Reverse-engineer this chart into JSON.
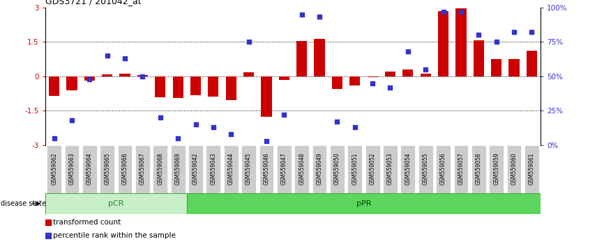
{
  "title": "GDS3721 / 201042_at",
  "samples": [
    "GSM559062",
    "GSM559063",
    "GSM559064",
    "GSM559065",
    "GSM559066",
    "GSM559067",
    "GSM559068",
    "GSM559069",
    "GSM559042",
    "GSM559043",
    "GSM559044",
    "GSM559045",
    "GSM559046",
    "GSM559047",
    "GSM559048",
    "GSM559049",
    "GSM559050",
    "GSM559051",
    "GSM559052",
    "GSM559053",
    "GSM559054",
    "GSM559055",
    "GSM559056",
    "GSM559057",
    "GSM559058",
    "GSM559059",
    "GSM559060",
    "GSM559061"
  ],
  "bar_values": [
    -0.85,
    -0.6,
    -0.18,
    0.08,
    0.12,
    0.05,
    -0.92,
    -0.95,
    -0.82,
    -0.88,
    -1.05,
    0.18,
    -1.75,
    -0.15,
    1.55,
    1.62,
    -0.55,
    -0.4,
    -0.05,
    0.2,
    0.3,
    0.12,
    2.85,
    2.95,
    1.58,
    0.75,
    0.75,
    1.1
  ],
  "percentile_values": [
    5,
    18,
    48,
    65,
    63,
    50,
    20,
    5,
    15,
    13,
    8,
    75,
    3,
    22,
    95,
    93,
    17,
    13,
    45,
    42,
    68,
    55,
    97,
    97,
    80,
    75,
    82,
    82
  ],
  "pcr_count": 8,
  "bar_color": "#cc0000",
  "dot_color": "#3333cc",
  "pcr_color_light": "#c8f0c8",
  "pcr_color": "#5cd65c",
  "ppr_color": "#5cd65c",
  "tick_bg_color": "#d0d0d0",
  "ylim_min": -3,
  "ylim_max": 3,
  "dotted_lines": [
    1.5,
    0.0,
    -1.5
  ],
  "legend_bar": "transformed count",
  "legend_dot": "percentile rank within the sample",
  "disease_state_label": "disease state",
  "pcr_label": "pCR",
  "ppr_label": "pPR",
  "right_yticks": [
    0,
    25,
    50,
    75,
    100
  ],
  "right_yticklabels": [
    "0%",
    "25%",
    "50%",
    "75%",
    "100%"
  ]
}
